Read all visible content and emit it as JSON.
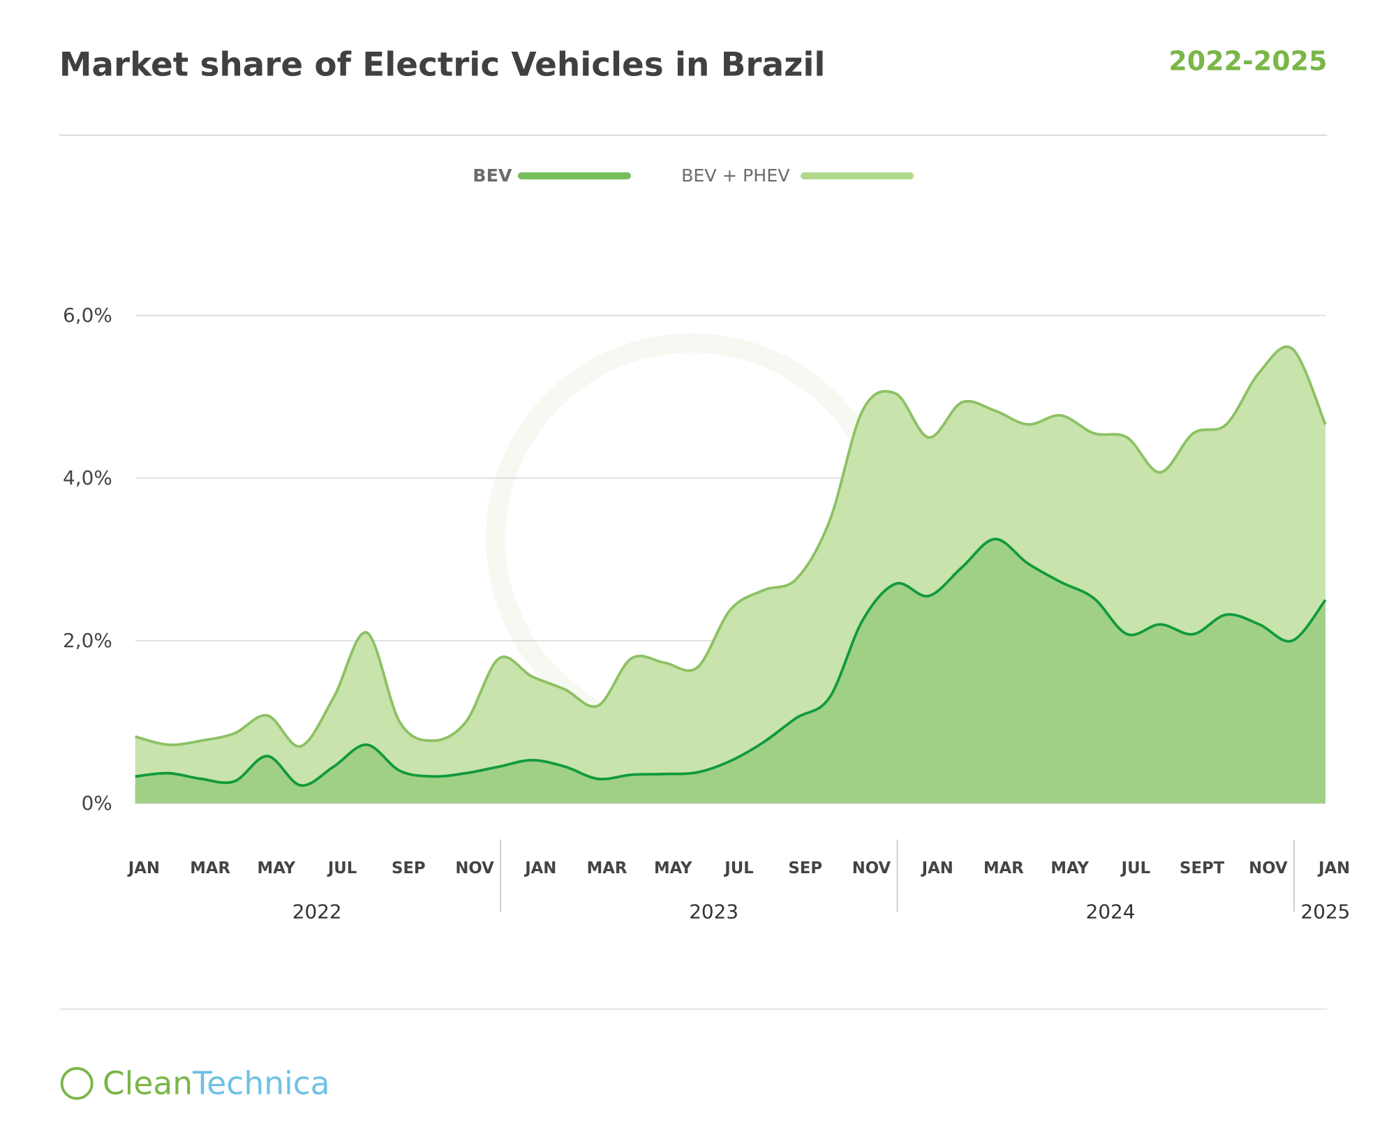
{
  "chart_data": {
    "type": "area",
    "title": "Market share of Electric Vehicles in Brazil",
    "subtitle": "2022-2025",
    "categories": [
      "JAN",
      null,
      "MAR",
      null,
      "MAY",
      null,
      "JUL",
      null,
      "SEP",
      null,
      "NOV",
      null,
      "JAN",
      null,
      "MAR",
      null,
      "MAY",
      null,
      "JUL",
      null,
      "SEP",
      null,
      "NOV",
      null,
      "JAN",
      null,
      "MAR",
      null,
      "MAY",
      null,
      "JUL",
      null,
      "SEPT",
      null,
      "NOV",
      null,
      "JAN"
    ],
    "years": [
      {
        "label": "2022",
        "months": 12
      },
      {
        "label": "2023",
        "months": 12
      },
      {
        "label": "2024",
        "months": 12
      },
      {
        "label": "2025",
        "months": 1
      }
    ],
    "series": [
      {
        "name": "BEV + PHEV",
        "color": "#8cc163",
        "fill": "#c8e3ac",
        "values": [
          0.82,
          0.72,
          0.77,
          0.86,
          1.08,
          0.7,
          1.3,
          2.1,
          1.0,
          0.77,
          1.0,
          1.78,
          1.56,
          1.4,
          1.2,
          1.78,
          1.73,
          1.67,
          2.38,
          2.62,
          2.76,
          3.47,
          4.83,
          5.04,
          4.5,
          4.93,
          4.83,
          4.66,
          4.77,
          4.55,
          4.5,
          4.07,
          4.55,
          4.66,
          5.3,
          5.59,
          4.66
        ]
      },
      {
        "name": "BEV",
        "color": "#119a3c",
        "fill": "#a0d085",
        "values": [
          0.33,
          0.37,
          0.3,
          0.27,
          0.58,
          0.22,
          0.45,
          0.72,
          0.4,
          0.33,
          0.37,
          0.45,
          0.53,
          0.45,
          0.3,
          0.35,
          0.36,
          0.38,
          0.52,
          0.75,
          1.05,
          1.3,
          2.25,
          2.7,
          2.55,
          2.9,
          3.25,
          2.95,
          2.72,
          2.52,
          2.08,
          2.2,
          2.08,
          2.32,
          2.2,
          2.0,
          2.5
        ]
      }
    ],
    "legend": [
      {
        "name": "BEV",
        "color": "#74bf5c"
      },
      {
        "name": "BEV + PHEV",
        "color": "#b0d98d"
      }
    ],
    "ylim": [
      0,
      6
    ],
    "yticks": [
      {
        "value": 0,
        "label": "0%"
      },
      {
        "value": 2,
        "label": "2,0%"
      },
      {
        "value": 4,
        "label": "4,0%"
      },
      {
        "value": 6,
        "label": "6,0%"
      }
    ],
    "grid": true,
    "brand": [
      "Clean",
      "Technica"
    ]
  }
}
